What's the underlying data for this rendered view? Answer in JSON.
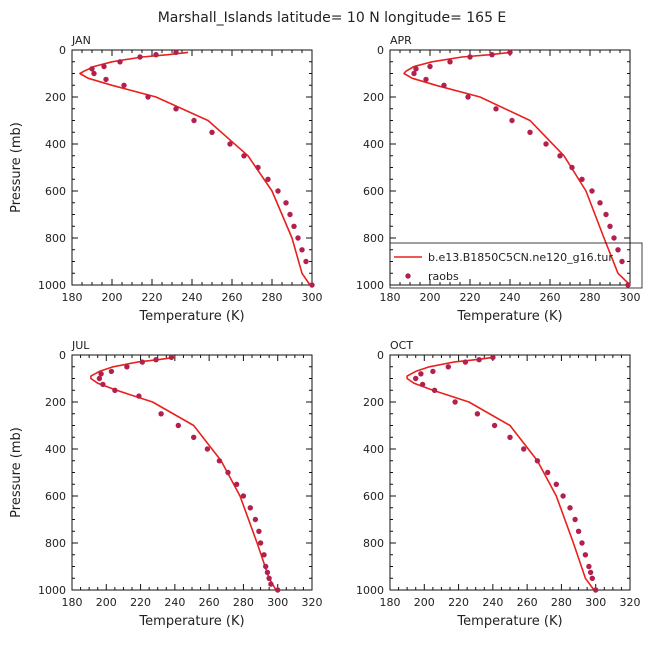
{
  "figure_title": "Marshall_Islands  latitude= 10 N longitude= 165 E",
  "colors": {
    "model_line": "#e8211d",
    "obs_points": "#b2204e",
    "axis": "#111111"
  },
  "legend": {
    "model_label": "b.e13.B1850C5CN.ne120_g16.tur",
    "obs_label": "raobs"
  },
  "chart_data": [
    {
      "type": "line",
      "panel_label": "JAN",
      "xlabel": "Temperature (K)",
      "ylabel": "Pressure (mb)",
      "xlim": [
        180,
        300
      ],
      "ylim": [
        1000,
        0
      ],
      "xticks": [
        "180",
        "200",
        "220",
        "240",
        "260",
        "280",
        "300"
      ],
      "yticks": [
        "0",
        "200",
        "400",
        "600",
        "800",
        "1000"
      ],
      "series": [
        {
          "name": "b.e13.B1850C5CN.ne120_g16.tur",
          "style": "line",
          "x": [
            238,
            228,
            215,
            200,
            191,
            186,
            184,
            188,
            200,
            222,
            248,
            268,
            280,
            290,
            295,
            299
          ],
          "y": [
            10,
            20,
            30,
            50,
            70,
            90,
            100,
            120,
            150,
            200,
            300,
            450,
            600,
            800,
            950,
            1000
          ]
        },
        {
          "name": "raobs",
          "style": "points",
          "x": [
            232,
            222,
            214,
            204,
            196,
            190,
            191,
            197,
            206,
            218,
            232,
            241,
            250,
            259,
            266,
            273,
            278,
            283,
            287,
            289,
            291,
            293,
            295,
            297,
            300
          ],
          "y": [
            10,
            20,
            30,
            50,
            70,
            80,
            100,
            125,
            150,
            200,
            250,
            300,
            350,
            400,
            450,
            500,
            550,
            600,
            650,
            700,
            750,
            800,
            850,
            900,
            1000
          ]
        }
      ]
    },
    {
      "type": "line",
      "panel_label": "APR",
      "xlabel": "Temperature (K)",
      "ylabel": "",
      "xlim": [
        180,
        300
      ],
      "ylim": [
        1000,
        0
      ],
      "xticks": [
        "180",
        "200",
        "220",
        "240",
        "260",
        "280",
        "300"
      ],
      "yticks": [
        "0",
        "200",
        "400",
        "600",
        "800",
        "1000"
      ],
      "legend_position": "lower-right",
      "series": [
        {
          "name": "b.e13.B1850C5CN.ne120_g16.tur",
          "style": "line",
          "x": [
            240,
            230,
            216,
            201,
            192,
            188,
            187,
            191,
            203,
            225,
            250,
            267,
            278,
            287,
            294,
            300
          ],
          "y": [
            10,
            20,
            30,
            50,
            70,
            90,
            100,
            120,
            150,
            200,
            300,
            450,
            600,
            800,
            950,
            1000
          ]
        },
        {
          "name": "raobs",
          "style": "points",
          "x": [
            240,
            231,
            220,
            210,
            200,
            193,
            192,
            198,
            207,
            219,
            233,
            241,
            250,
            258,
            265,
            271,
            276,
            281,
            285,
            288,
            290,
            292,
            294,
            296,
            299
          ],
          "y": [
            10,
            20,
            30,
            50,
            70,
            80,
            100,
            125,
            150,
            200,
            250,
            300,
            350,
            400,
            450,
            500,
            550,
            600,
            650,
            700,
            750,
            800,
            850,
            900,
            1000
          ]
        }
      ]
    },
    {
      "type": "line",
      "panel_label": "JUL",
      "xlabel": "Temperature (K)",
      "ylabel": "Pressure (mb)",
      "xlim": [
        180,
        320
      ],
      "ylim": [
        1000,
        0
      ],
      "xticks": [
        "180",
        "200",
        "220",
        "240",
        "260",
        "280",
        "300",
        "320"
      ],
      "yticks": [
        "0",
        "200",
        "400",
        "600",
        "800",
        "1000"
      ],
      "series": [
        {
          "name": "b.e13.B1850C5CN.ne120_g16.tur",
          "style": "line",
          "x": [
            240,
            230,
            218,
            204,
            196,
            191,
            191,
            195,
            206,
            227,
            251,
            267,
            278,
            288,
            295,
            299
          ],
          "y": [
            10,
            20,
            30,
            50,
            70,
            90,
            100,
            120,
            150,
            200,
            300,
            450,
            600,
            800,
            950,
            1000
          ]
        },
        {
          "name": "raobs",
          "style": "points",
          "x": [
            238,
            229,
            221,
            212,
            203,
            197,
            196,
            198,
            205,
            219,
            232,
            242,
            251,
            259,
            266,
            271,
            276,
            280,
            284,
            287,
            289,
            290,
            292,
            293,
            294,
            295,
            296,
            300
          ],
          "y": [
            10,
            20,
            30,
            50,
            70,
            80,
            100,
            125,
            150,
            175,
            250,
            300,
            350,
            400,
            450,
            500,
            550,
            600,
            650,
            700,
            750,
            800,
            850,
            900,
            925,
            950,
            975,
            1000
          ]
        }
      ]
    },
    {
      "type": "line",
      "panel_label": "OCT",
      "xlabel": "Temperature (K)",
      "ylabel": "",
      "xlim": [
        180,
        320
      ],
      "ylim": [
        1000,
        0
      ],
      "xticks": [
        "180",
        "200",
        "220",
        "240",
        "260",
        "280",
        "300",
        "320"
      ],
      "yticks": [
        "0",
        "200",
        "400",
        "600",
        "800",
        "1000"
      ],
      "series": [
        {
          "name": "b.e13.B1850C5CN.ne120_g16.tur",
          "style": "line",
          "x": [
            240,
            230,
            217,
            203,
            195,
            190,
            190,
            194,
            205,
            226,
            250,
            266,
            277,
            287,
            294,
            299
          ],
          "y": [
            10,
            20,
            30,
            50,
            70,
            90,
            100,
            120,
            150,
            200,
            300,
            450,
            600,
            800,
            950,
            1000
          ]
        },
        {
          "name": "raobs",
          "style": "points",
          "x": [
            240,
            232,
            224,
            214,
            205,
            198,
            195,
            199,
            206,
            218,
            231,
            241,
            250,
            258,
            266,
            272,
            277,
            281,
            285,
            288,
            290,
            292,
            294,
            296,
            297,
            298,
            300
          ],
          "y": [
            10,
            20,
            30,
            50,
            70,
            80,
            100,
            125,
            150,
            200,
            250,
            300,
            350,
            400,
            450,
            500,
            550,
            600,
            650,
            700,
            750,
            800,
            850,
            900,
            925,
            950,
            1000
          ]
        }
      ]
    }
  ]
}
